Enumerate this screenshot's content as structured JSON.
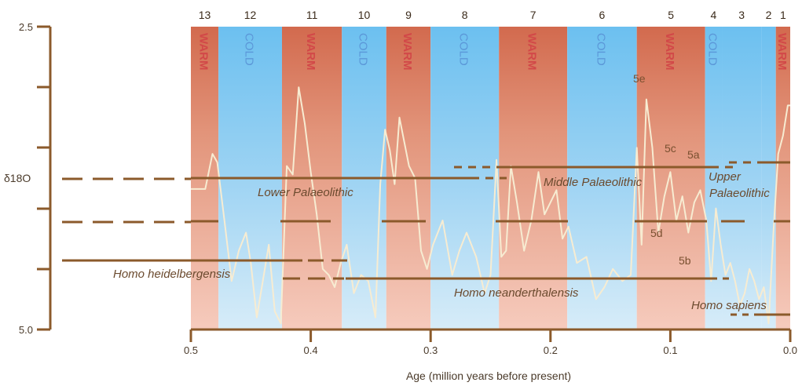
{
  "chart_data": {
    "type": "line",
    "title": "",
    "xlabel": "Age (million years before present)",
    "ylabel": "δ18O",
    "xlim": [
      0.5,
      0.0
    ],
    "ylim": [
      5.0,
      2.5
    ],
    "x_ticks": [
      "0.5",
      "0.4",
      "0.3",
      "0.2",
      "0.1",
      "0.0"
    ],
    "y_ticks": [
      "2.5",
      "5.0"
    ],
    "periods": [
      {
        "type": "warm",
        "label": "WARM",
        "stage": "13",
        "start": 0.5,
        "end": 0.477
      },
      {
        "type": "cold",
        "label": "COLD",
        "stage": "12",
        "start": 0.477,
        "end": 0.424
      },
      {
        "type": "warm",
        "label": "WARM",
        "stage": "11",
        "start": 0.424,
        "end": 0.374
      },
      {
        "type": "cold",
        "label": "COLD",
        "stage": "10",
        "start": 0.374,
        "end": 0.337
      },
      {
        "type": "warm",
        "label": "WARM",
        "stage": "9",
        "start": 0.337,
        "end": 0.3
      },
      {
        "type": "cold",
        "label": "COLD",
        "stage": "8",
        "start": 0.3,
        "end": 0.243
      },
      {
        "type": "warm",
        "label": "WARM",
        "stage": "7",
        "start": 0.243,
        "end": 0.186
      },
      {
        "type": "cold",
        "label": "COLD",
        "stage": "6",
        "start": 0.186,
        "end": 0.128
      },
      {
        "type": "warm",
        "label": "WARM",
        "stage": "5",
        "start": 0.128,
        "end": 0.071
      },
      {
        "type": "cold",
        "label": "COLD",
        "stage": "4",
        "start": 0.071,
        "end": 0.057
      },
      {
        "type": "cold",
        "label": "",
        "stage": "3",
        "start": 0.057,
        "end": 0.024
      },
      {
        "type": "cold",
        "label": "",
        "stage": "2",
        "start": 0.024,
        "end": 0.012
      },
      {
        "type": "warm",
        "label": "WARM",
        "stage": "1",
        "start": 0.012,
        "end": 0.0
      }
    ],
    "series": [
      {
        "x": [
          0.5,
          0.488,
          0.482,
          0.478,
          0.472,
          0.466,
          0.46,
          0.454,
          0.45,
          0.445,
          0.44,
          0.435,
          0.43,
          0.425,
          0.42,
          0.415,
          0.41,
          0.405,
          0.4,
          0.395,
          0.39,
          0.385,
          0.38,
          0.375,
          0.37,
          0.364,
          0.358,
          0.352,
          0.346,
          0.342,
          0.338,
          0.334,
          0.33,
          0.326,
          0.322,
          0.318,
          0.313,
          0.308,
          0.303,
          0.298,
          0.29,
          0.282,
          0.276,
          0.27,
          0.262,
          0.255,
          0.25,
          0.245,
          0.241,
          0.237,
          0.233,
          0.228,
          0.222,
          0.216,
          0.21,
          0.205,
          0.2,
          0.195,
          0.19,
          0.185,
          0.178,
          0.17,
          0.162,
          0.155,
          0.148,
          0.14,
          0.133,
          0.128,
          0.124,
          0.12,
          0.115,
          0.11,
          0.105,
          0.1,
          0.095,
          0.09,
          0.085,
          0.08,
          0.075,
          0.07,
          0.066,
          0.062,
          0.058,
          0.054,
          0.05,
          0.046,
          0.042,
          0.038,
          0.034,
          0.03,
          0.026,
          0.022,
          0.018,
          0.014,
          0.01,
          0.006,
          0.002,
          0.0
        ],
        "y": [
          3.84,
          3.84,
          3.55,
          3.62,
          4.1,
          4.6,
          4.35,
          4.2,
          4.45,
          4.9,
          4.6,
          4.3,
          4.85,
          4.95,
          3.65,
          3.72,
          3.0,
          3.3,
          3.7,
          4.05,
          4.5,
          4.55,
          4.65,
          4.45,
          4.3,
          4.7,
          4.55,
          4.6,
          4.9,
          3.8,
          3.35,
          3.52,
          3.8,
          3.25,
          3.45,
          3.65,
          3.75,
          4.35,
          4.5,
          4.3,
          4.1,
          4.55,
          4.35,
          4.2,
          4.4,
          4.7,
          4.55,
          3.6,
          4.4,
          4.35,
          3.65,
          3.95,
          4.35,
          4.1,
          3.7,
          4.05,
          3.95,
          3.85,
          4.25,
          4.15,
          4.45,
          4.4,
          4.75,
          4.65,
          4.5,
          4.6,
          4.55,
          3.5,
          4.3,
          3.1,
          3.5,
          4.2,
          3.9,
          3.7,
          4.1,
          3.9,
          4.2,
          3.95,
          3.85,
          4.1,
          4.6,
          4.0,
          4.3,
          4.55,
          4.45,
          4.6,
          4.8,
          4.7,
          4.5,
          4.6,
          4.75,
          4.65,
          4.95,
          4.2,
          3.55,
          3.4,
          3.15,
          3.15
        ]
      }
    ],
    "annotations": {
      "substages": [
        "5e",
        "5c",
        "5a",
        "5d",
        "5b"
      ],
      "cultures": [
        "Lower Palaeolithic",
        "Middle Palaeolithic",
        "Upper",
        "Palaeolithic"
      ],
      "species": [
        "Homo heidelbergensis",
        "Homo neanderthalensis",
        "Homo sapiens"
      ]
    },
    "colors": {
      "warm_top": "#d26a4e",
      "warm_bottom": "#f6cbbd",
      "cold_top": "#6cc0f0",
      "cold_bottom": "#d7ecf8",
      "curve": "#f7ecd2",
      "bars": "#8b5a2b",
      "axis": "#8b5a2b",
      "warm_text": "#d24848",
      "cold_text": "#5b97d8"
    }
  }
}
